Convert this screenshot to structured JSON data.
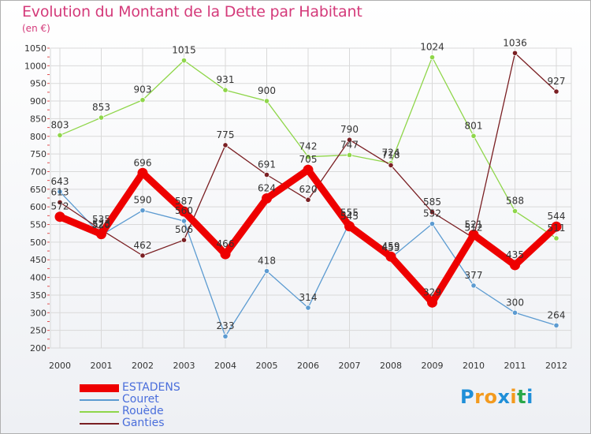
{
  "title": "Evolution du Montant de la Dette par Habitant",
  "subtitle": "(en €)",
  "logo": {
    "text": "Proxiti",
    "letters": [
      "P",
      "r",
      "o",
      "x",
      "i",
      "t",
      "i"
    ],
    "colors": [
      "#1f8fd8",
      "#f39a1e",
      "#f39a1e",
      "#1f8fd8",
      "#f39a1e",
      "#2aa84a",
      "#1f8fd8"
    ]
  },
  "chart_data": {
    "type": "line",
    "title": "Evolution du Montant de la Dette par Habitant",
    "subtitle": "(en €)",
    "xlabel": "",
    "ylabel": "",
    "x": [
      "2000",
      "2001",
      "2002",
      "2003",
      "2004",
      "2005",
      "2006",
      "2007",
      "2008",
      "2009",
      "2010",
      "2011",
      "2012"
    ],
    "ylim": [
      200,
      1050
    ],
    "yticks": [
      200,
      250,
      300,
      350,
      400,
      450,
      500,
      550,
      600,
      650,
      700,
      750,
      800,
      850,
      900,
      950,
      1000,
      1050
    ],
    "grid": true,
    "legend_position": "bottom-left",
    "series": [
      {
        "name": "ESTADENS",
        "color": "#ee0000",
        "values": [
          572,
          523,
          696,
          587,
          466,
          624,
          705,
          545,
          459,
          329,
          521,
          435,
          544
        ]
      },
      {
        "name": "Couret",
        "color": "#5c9bd1",
        "values": [
          643,
          520,
          590,
          560,
          233,
          418,
          314,
          555,
          455,
          552,
          377,
          300,
          264
        ]
      },
      {
        "name": "Rouède",
        "color": "#8fd64a",
        "values": [
          803,
          853,
          903,
          1015,
          931,
          900,
          742,
          747,
          724,
          1024,
          801,
          588,
          511
        ]
      },
      {
        "name": "Ganties",
        "color": "#7a1f23",
        "values": [
          613,
          535,
          462,
          506,
          775,
          691,
          620,
          790,
          718,
          585,
          512,
          1036,
          927
        ]
      }
    ]
  }
}
